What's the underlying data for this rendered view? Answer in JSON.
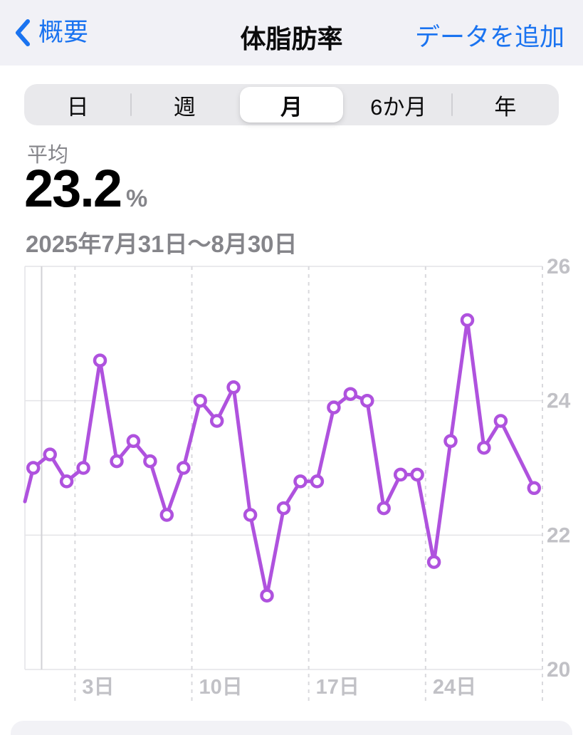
{
  "nav": {
    "back_label": "概要",
    "title": "体脂肪率",
    "add_label": "データを追加"
  },
  "segmented": {
    "options": [
      "日",
      "週",
      "月",
      "6か月",
      "年"
    ],
    "selected_index": 2,
    "selected_label": "月"
  },
  "summary": {
    "label": "平均",
    "value": "23.2",
    "unit": "%",
    "date_range": "2025年7月31日〜8月30日"
  },
  "colors": {
    "accent_blue": "#1A73F0",
    "line_purple": "#AF52DE",
    "axis_label": "#C1C1C6",
    "grid": "#E4E4E7",
    "dashed_grid": "#D9D9DD",
    "month_line": "#D2D2D6",
    "nav_bg": "#F1F1F6",
    "text_gray": "#85858A"
  },
  "chart_data": {
    "type": "line",
    "series_name": "体脂肪率",
    "x_start": "2025-07-31",
    "x_end": "2025-08-30",
    "x_days": 31,
    "values": [
      23.0,
      23.2,
      22.8,
      23.0,
      24.6,
      23.1,
      23.4,
      23.1,
      22.3,
      23.0,
      24.0,
      23.7,
      24.2,
      22.3,
      21.1,
      22.4,
      22.8,
      22.8,
      23.9,
      24.1,
      24.0,
      22.4,
      22.9,
      22.9,
      21.6,
      23.4,
      25.2,
      23.3,
      23.7,
      null,
      22.7
    ],
    "lead_in_value": 22.5,
    "ylim": [
      20,
      26
    ],
    "y_ticks": [
      26,
      24,
      22,
      20
    ],
    "x_ticks": [
      {
        "day": 3,
        "label": "3日"
      },
      {
        "day": 10,
        "label": "10日"
      },
      {
        "day": 17,
        "label": "17日"
      },
      {
        "day": 24,
        "label": "24日"
      },
      {
        "day": 31,
        "label": ""
      }
    ],
    "month_line_day": 1,
    "grid": "on",
    "legend": "none",
    "marker": "open-circle"
  }
}
